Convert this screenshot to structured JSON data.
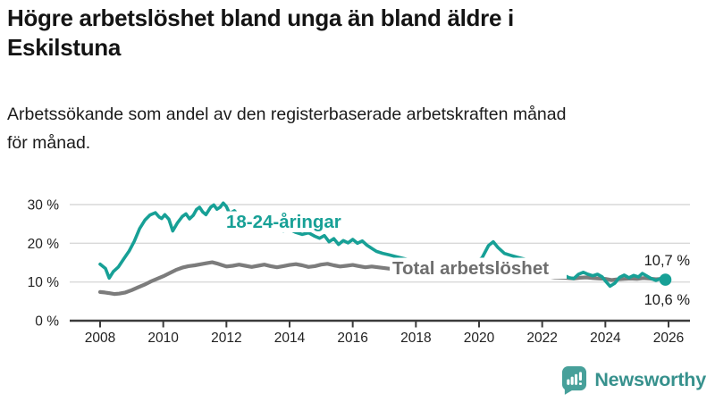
{
  "title": "Högre arbetslöshet bland unga än bland äldre i Eskilstuna",
  "title_lines": [
    "Högre arbetslöshet bland unga än bland äldre i",
    "Eskilstuna"
  ],
  "subtitle": "Arbetssökande som andel av den registerbaserade arbetskraften månad för månad.",
  "subtitle_lines": [
    "Arbetssökande som andel av den registerbaserade arbetskraften månad",
    "för månad."
  ],
  "branding": {
    "logo_text": "Newsworthy",
    "logo_color": "#37918d",
    "icon_color": "#47a09a"
  },
  "chart_data": {
    "type": "line",
    "title": "Högre arbetslöshet bland unga än bland äldre i Eskilstuna",
    "xlabel": "",
    "ylabel": "",
    "x_range": [
      2008,
      2026.2
    ],
    "ylim": [
      0,
      32
    ],
    "grid": "horizontal",
    "legend": "inline-labels",
    "x_ticks": [
      2008,
      2010,
      2012,
      2014,
      2016,
      2018,
      2020,
      2022,
      2024,
      2026
    ],
    "x_tick_labels": [
      "2008",
      "2010",
      "2012",
      "2014",
      "2016",
      "2018",
      "2020",
      "2022",
      "2024",
      "2026"
    ],
    "y_ticks": [
      0,
      10,
      20,
      30
    ],
    "y_tick_labels": [
      "0 %",
      "10 %",
      "20 %",
      "30 %"
    ],
    "series": [
      {
        "id": "youth",
        "name": "18-24-åringar",
        "label": "18-24-åringar",
        "color": "#17a096",
        "label_color": "#17a096",
        "end_label": "10,6 %",
        "end_value": 10.6,
        "points": [
          [
            2008.0,
            14.6
          ],
          [
            2008.08,
            14.1
          ],
          [
            2008.17,
            13.5
          ],
          [
            2008.29,
            11.0
          ],
          [
            2008.42,
            12.7
          ],
          [
            2008.58,
            13.9
          ],
          [
            2008.75,
            16.0
          ],
          [
            2008.92,
            18.0
          ],
          [
            2009.08,
            20.5
          ],
          [
            2009.25,
            23.8
          ],
          [
            2009.42,
            26.0
          ],
          [
            2009.58,
            27.3
          ],
          [
            2009.75,
            27.9
          ],
          [
            2009.87,
            26.8
          ],
          [
            2009.95,
            26.4
          ],
          [
            2010.05,
            27.4
          ],
          [
            2010.18,
            26.2
          ],
          [
            2010.3,
            23.2
          ],
          [
            2010.45,
            25.3
          ],
          [
            2010.6,
            26.9
          ],
          [
            2010.72,
            27.6
          ],
          [
            2010.83,
            26.3
          ],
          [
            2010.95,
            27.2
          ],
          [
            2011.05,
            28.7
          ],
          [
            2011.15,
            29.3
          ],
          [
            2011.25,
            28.1
          ],
          [
            2011.35,
            27.4
          ],
          [
            2011.5,
            29.3
          ],
          [
            2011.6,
            29.9
          ],
          [
            2011.7,
            28.8
          ],
          [
            2011.8,
            29.3
          ],
          [
            2011.9,
            30.4
          ],
          [
            2012.0,
            29.5
          ],
          [
            2012.1,
            27.7
          ],
          [
            2012.25,
            28.4
          ],
          [
            2012.4,
            27.1
          ],
          [
            2012.55,
            26.3
          ],
          [
            2012.7,
            25.5
          ],
          [
            2012.85,
            26.0
          ],
          [
            2013.0,
            25.1
          ],
          [
            2013.2,
            24.4
          ],
          [
            2013.4,
            24.8
          ],
          [
            2013.6,
            23.9
          ],
          [
            2013.8,
            23.2
          ],
          [
            2014.0,
            23.6
          ],
          [
            2014.2,
            22.8
          ],
          [
            2014.4,
            22.3
          ],
          [
            2014.6,
            22.7
          ],
          [
            2014.8,
            21.8
          ],
          [
            2014.95,
            21.3
          ],
          [
            2015.1,
            22.0
          ],
          [
            2015.25,
            20.4
          ],
          [
            2015.4,
            21.2
          ],
          [
            2015.55,
            19.7
          ],
          [
            2015.7,
            20.7
          ],
          [
            2015.85,
            20.1
          ],
          [
            2016.0,
            21.0
          ],
          [
            2016.15,
            20.0
          ],
          [
            2016.3,
            20.6
          ],
          [
            2016.45,
            19.5
          ],
          [
            2016.6,
            18.7
          ],
          [
            2016.75,
            17.9
          ],
          [
            2016.95,
            17.4
          ],
          [
            2017.15,
            17.0
          ],
          [
            2017.35,
            16.6
          ],
          [
            2017.6,
            16.1
          ],
          [
            2017.9,
            15.5
          ],
          [
            2018.2,
            15.0
          ],
          [
            2018.6,
            14.5
          ],
          [
            2019.0,
            14.1
          ],
          [
            2019.4,
            13.9
          ],
          [
            2019.8,
            14.4
          ],
          [
            2020.1,
            16.3
          ],
          [
            2020.3,
            19.4
          ],
          [
            2020.45,
            20.4
          ],
          [
            2020.6,
            18.9
          ],
          [
            2020.8,
            17.4
          ],
          [
            2021.0,
            16.9
          ],
          [
            2021.2,
            16.4
          ],
          [
            2021.45,
            15.9
          ],
          [
            2021.7,
            15.0
          ],
          [
            2022.0,
            13.9
          ],
          [
            2022.3,
            12.9
          ],
          [
            2022.55,
            12.2
          ],
          [
            2022.7,
            11.7
          ],
          [
            2022.85,
            11.1
          ],
          [
            2023.0,
            10.9
          ],
          [
            2023.15,
            12.0
          ],
          [
            2023.3,
            12.5
          ],
          [
            2023.45,
            12.0
          ],
          [
            2023.6,
            11.6
          ],
          [
            2023.75,
            12.0
          ],
          [
            2023.9,
            11.3
          ],
          [
            2024.0,
            10.3
          ],
          [
            2024.15,
            8.9
          ],
          [
            2024.3,
            9.7
          ],
          [
            2024.45,
            11.2
          ],
          [
            2024.6,
            11.8
          ],
          [
            2024.75,
            11.1
          ],
          [
            2024.9,
            11.7
          ],
          [
            2025.05,
            11.3
          ],
          [
            2025.17,
            12.2
          ],
          [
            2025.3,
            11.6
          ],
          [
            2025.45,
            10.9
          ],
          [
            2025.6,
            10.4
          ],
          [
            2025.75,
            10.9
          ],
          [
            2025.9,
            10.6
          ]
        ]
      },
      {
        "id": "total",
        "name": "Total arbetslöshet",
        "label": "Total arbetslöshet",
        "color": "#7c7c7c",
        "label_color": "#6e6e6e",
        "end_label": "10,7 %",
        "end_value": 10.7,
        "points": [
          [
            2008.0,
            7.4
          ],
          [
            2008.15,
            7.3
          ],
          [
            2008.3,
            7.1
          ],
          [
            2008.45,
            6.9
          ],
          [
            2008.6,
            7.0
          ],
          [
            2008.8,
            7.3
          ],
          [
            2009.0,
            7.9
          ],
          [
            2009.2,
            8.6
          ],
          [
            2009.4,
            9.3
          ],
          [
            2009.6,
            10.1
          ],
          [
            2009.8,
            10.8
          ],
          [
            2010.0,
            11.5
          ],
          [
            2010.2,
            12.3
          ],
          [
            2010.4,
            13.1
          ],
          [
            2010.6,
            13.7
          ],
          [
            2010.8,
            14.1
          ],
          [
            2011.0,
            14.3
          ],
          [
            2011.2,
            14.6
          ],
          [
            2011.4,
            14.9
          ],
          [
            2011.55,
            15.1
          ],
          [
            2011.7,
            14.8
          ],
          [
            2011.85,
            14.4
          ],
          [
            2012.0,
            14.0
          ],
          [
            2012.2,
            14.2
          ],
          [
            2012.4,
            14.5
          ],
          [
            2012.6,
            14.2
          ],
          [
            2012.8,
            13.9
          ],
          [
            2013.0,
            14.2
          ],
          [
            2013.2,
            14.5
          ],
          [
            2013.4,
            14.1
          ],
          [
            2013.6,
            13.8
          ],
          [
            2013.8,
            14.1
          ],
          [
            2014.0,
            14.4
          ],
          [
            2014.2,
            14.6
          ],
          [
            2014.4,
            14.3
          ],
          [
            2014.6,
            13.9
          ],
          [
            2014.8,
            14.1
          ],
          [
            2015.0,
            14.5
          ],
          [
            2015.2,
            14.7
          ],
          [
            2015.4,
            14.3
          ],
          [
            2015.6,
            14.0
          ],
          [
            2015.8,
            14.2
          ],
          [
            2016.0,
            14.4
          ],
          [
            2016.2,
            14.1
          ],
          [
            2016.4,
            13.8
          ],
          [
            2016.6,
            14.0
          ],
          [
            2016.8,
            13.8
          ],
          [
            2017.0,
            13.6
          ],
          [
            2017.2,
            13.4
          ],
          [
            2017.4,
            13.2
          ],
          [
            2017.7,
            12.9
          ],
          [
            2018.0,
            12.5
          ],
          [
            2018.4,
            12.1
          ],
          [
            2018.8,
            11.8
          ],
          [
            2019.2,
            11.6
          ],
          [
            2019.6,
            11.5
          ],
          [
            2020.0,
            11.9
          ],
          [
            2020.3,
            13.2
          ],
          [
            2020.5,
            13.8
          ],
          [
            2020.8,
            13.3
          ],
          [
            2021.1,
            12.8
          ],
          [
            2021.4,
            12.4
          ],
          [
            2021.7,
            12.0
          ],
          [
            2022.0,
            11.6
          ],
          [
            2022.4,
            11.2
          ],
          [
            2022.7,
            11.1
          ],
          [
            2023.0,
            10.9
          ],
          [
            2023.2,
            11.1
          ],
          [
            2023.4,
            11.2
          ],
          [
            2023.6,
            11.0
          ],
          [
            2023.8,
            10.9
          ],
          [
            2024.0,
            10.8
          ],
          [
            2024.2,
            10.5
          ],
          [
            2024.4,
            10.7
          ],
          [
            2024.6,
            10.8
          ],
          [
            2024.8,
            10.9
          ],
          [
            2025.0,
            10.8
          ],
          [
            2025.2,
            11.0
          ],
          [
            2025.4,
            10.9
          ],
          [
            2025.6,
            10.7
          ],
          [
            2025.75,
            10.8
          ],
          [
            2025.9,
            10.7
          ]
        ]
      }
    ]
  }
}
